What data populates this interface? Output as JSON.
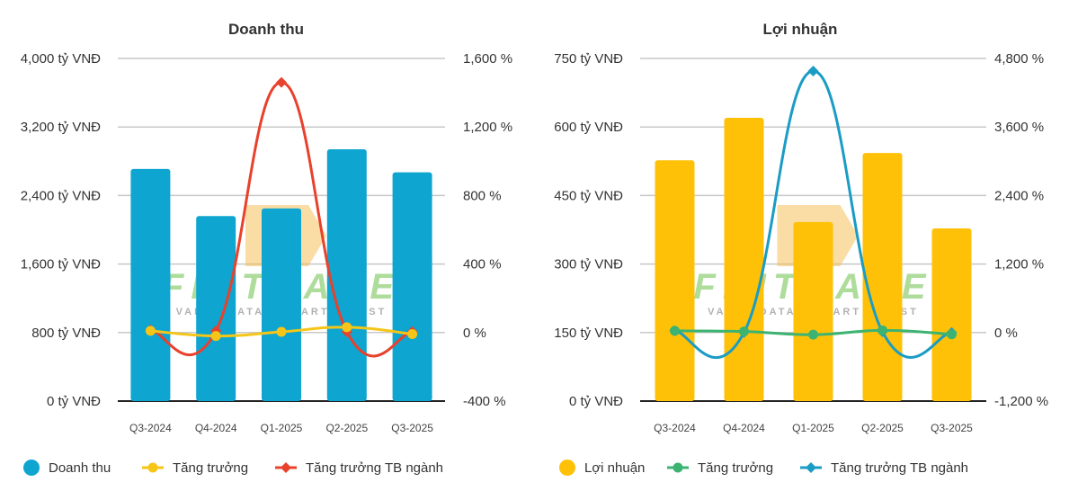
{
  "chart_data": [
    {
      "type": "bar+line",
      "title": "Doanh thu",
      "categories": [
        "Q3-2024",
        "Q4-2024",
        "Q1-2025",
        "Q2-2025",
        "Q3-2025"
      ],
      "left_axis": {
        "ticks": [
          "0 tỷ VNĐ",
          "800 tỷ VNĐ",
          "1,600 tỷ VNĐ",
          "2,400 tỷ VNĐ",
          "3,200 tỷ VNĐ",
          "4,000 tỷ VNĐ"
        ],
        "ylim": [
          0,
          4000
        ],
        "unit": "tỷ VNĐ"
      },
      "right_axis": {
        "ticks": [
          "-400 %",
          "0 %",
          "400 %",
          "800 %",
          "1,200 %",
          "1,600 %"
        ],
        "ylim": [
          -400,
          1600
        ],
        "unit": "%"
      },
      "series": [
        {
          "name": "Doanh thu",
          "type": "bar",
          "axis": "left",
          "color": "#0ea5d0",
          "values": [
            2710,
            2160,
            2250,
            2940,
            2670
          ]
        },
        {
          "name": "Tăng trưởng",
          "type": "line",
          "axis": "right",
          "color": "#f5c518",
          "values": [
            10,
            -20,
            4,
            31,
            -9
          ]
        },
        {
          "name": "Tăng trưởng TB ngành",
          "type": "line",
          "axis": "right",
          "color": "#e8412c",
          "marker": "diamond",
          "values": [
            15,
            10,
            1460,
            5,
            5
          ]
        }
      ],
      "legend": "bottom"
    },
    {
      "type": "bar+line",
      "title": "Lợi nhuận",
      "categories": [
        "Q3-2024",
        "Q4-2024",
        "Q1-2025",
        "Q2-2025",
        "Q3-2025"
      ],
      "left_axis": {
        "ticks": [
          "0 tỷ VNĐ",
          "150 tỷ VNĐ",
          "300 tỷ VNĐ",
          "450 tỷ VNĐ",
          "600 tỷ VNĐ",
          "750 tỷ VNĐ"
        ],
        "ylim": [
          0,
          750
        ],
        "unit": "tỷ VNĐ"
      },
      "right_axis": {
        "ticks": [
          "-1,200 %",
          "0 %",
          "1,200 %",
          "2,400 %",
          "3,600 %",
          "4,800 %"
        ],
        "ylim": [
          -1200,
          4800
        ],
        "unit": "%"
      },
      "series": [
        {
          "name": "Lợi nhuận",
          "type": "bar",
          "axis": "left",
          "color": "#ffc107",
          "values": [
            527,
            620,
            392,
            543,
            378
          ]
        },
        {
          "name": "Tăng trưởng",
          "type": "line",
          "axis": "right",
          "color": "#3cb371",
          "values": [
            30,
            18,
            -37,
            39,
            -30
          ]
        },
        {
          "name": "Tăng trưởng TB ngành",
          "type": "line",
          "axis": "right",
          "color": "#1a9cc4",
          "marker": "diamond",
          "values": [
            30,
            0,
            4580,
            15,
            0
          ]
        }
      ],
      "legend": "bottom"
    }
  ],
  "watermark": {
    "logo": "FINTRADE",
    "tagline": "VALUE DATA - SMART INVEST"
  }
}
